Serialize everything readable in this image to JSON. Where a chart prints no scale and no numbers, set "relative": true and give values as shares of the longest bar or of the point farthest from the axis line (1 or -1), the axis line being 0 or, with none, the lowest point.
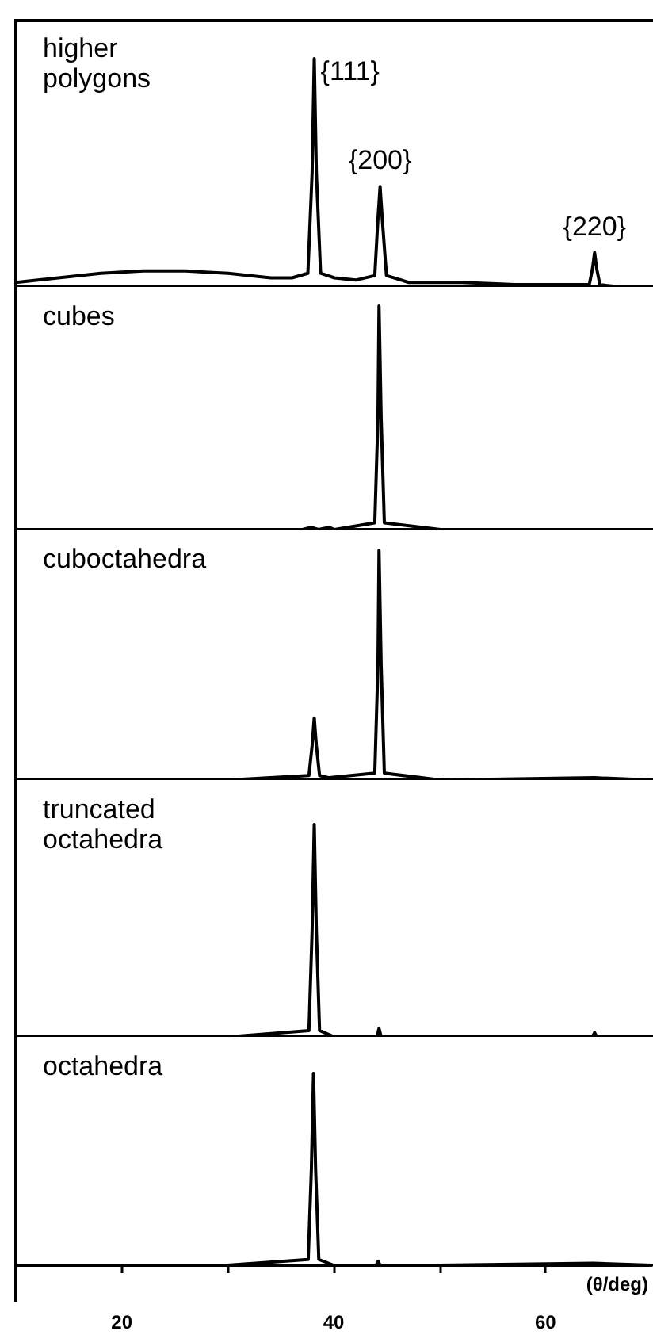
{
  "chart_data": [
    {
      "type": "line",
      "title": "higher polygons",
      "relative": true,
      "xlim": [
        10,
        70
      ],
      "tick_labels": false,
      "marker": "none",
      "line_style": "solid",
      "grid": false,
      "series": [
        {
          "color": "#000000",
          "x": [
            10,
            14,
            18,
            22,
            26,
            30,
            34,
            36,
            37.5,
            37.9,
            38.1,
            38.3,
            38.7,
            40,
            42,
            43.8,
            44.1,
            44.3,
            44.5,
            44.9,
            47,
            52,
            57,
            62,
            64,
            64.3,
            64.5,
            64.7,
            65,
            67,
            70
          ],
          "values": [
            0.02,
            0.04,
            0.06,
            0.07,
            0.07,
            0.06,
            0.04,
            0.04,
            0.06,
            0.5,
            1,
            0.5,
            0.06,
            0.04,
            0.03,
            0.05,
            0.3,
            0.44,
            0.3,
            0.05,
            0.02,
            0.02,
            0.01,
            0.01,
            0.01,
            0.08,
            0.15,
            0.08,
            0.01,
            0,
            0
          ]
        }
      ],
      "annotations": [
        {
          "text": "{111}",
          "x": 38.1,
          "y": 1
        },
        {
          "text": "{200}",
          "x": 44.3,
          "y": 0.44
        },
        {
          "text": "{220}",
          "x": 64.5,
          "y": 0.15
        }
      ]
    },
    {
      "type": "line",
      "title": "cubes",
      "relative": true,
      "xlim": [
        10,
        70
      ],
      "tick_labels": false,
      "marker": "none",
      "line_style": "solid",
      "grid": false,
      "series": [
        {
          "color": "#000000",
          "x": [
            10,
            30,
            37,
            37.8,
            38.5,
            39.5,
            40,
            43.8,
            44.1,
            44.2,
            44.4,
            44.7,
            50,
            60,
            70
          ],
          "values": [
            0,
            0,
            0,
            0.01,
            0,
            0.01,
            0,
            0.03,
            0.5,
            1,
            0.5,
            0.03,
            0,
            0,
            0
          ]
        }
      ]
    },
    {
      "type": "line",
      "title": "cuboctahedra",
      "relative": true,
      "xlim": [
        10,
        70
      ],
      "tick_labels": false,
      "marker": "none",
      "line_style": "solid",
      "grid": false,
      "series": [
        {
          "color": "#000000",
          "x": [
            10,
            30,
            37.6,
            37.9,
            38.1,
            38.3,
            38.6,
            39.5,
            43.8,
            44.1,
            44.2,
            44.4,
            44.7,
            50,
            64.5,
            70
          ],
          "values": [
            0,
            0,
            0.02,
            0.15,
            0.27,
            0.15,
            0.02,
            0.01,
            0.03,
            0.5,
            1,
            0.5,
            0.03,
            0,
            0.01,
            0
          ]
        }
      ]
    },
    {
      "type": "line",
      "title": "truncated octahedra",
      "relative": true,
      "xlim": [
        10,
        70
      ],
      "tick_labels": false,
      "marker": "none",
      "line_style": "solid",
      "grid": false,
      "series": [
        {
          "color": "#000000",
          "x": [
            10,
            30,
            37.6,
            37.9,
            38.1,
            38.3,
            38.6,
            40,
            44,
            44.2,
            44.4,
            50,
            64.3,
            64.5,
            64.7,
            70
          ],
          "values": [
            0,
            0,
            0.03,
            0.5,
            1,
            0.5,
            0.03,
            0,
            0,
            0.04,
            0,
            0,
            0,
            0.02,
            0,
            0
          ]
        }
      ]
    },
    {
      "type": "line",
      "title": "octahedra",
      "relative": true,
      "xlim": [
        10,
        70
      ],
      "xticks": [
        20,
        {
          "value": 30,
          "label": null
        },
        40,
        {
          "value": 50,
          "label": null
        },
        60
      ],
      "xlabel": "(θ/deg)",
      "tick_labels": "x",
      "marker": "none",
      "line_style": "solid",
      "grid": false,
      "series": [
        {
          "color": "#000000",
          "x": [
            10,
            30,
            37.6,
            37.9,
            38.1,
            38.3,
            38.6,
            40,
            44,
            44.2,
            44.4,
            50,
            64.5,
            70
          ],
          "values": [
            0,
            0,
            0.03,
            0.5,
            1,
            0.5,
            0.03,
            0,
            0,
            0.02,
            0,
            0,
            0.01,
            0
          ]
        }
      ]
    }
  ]
}
